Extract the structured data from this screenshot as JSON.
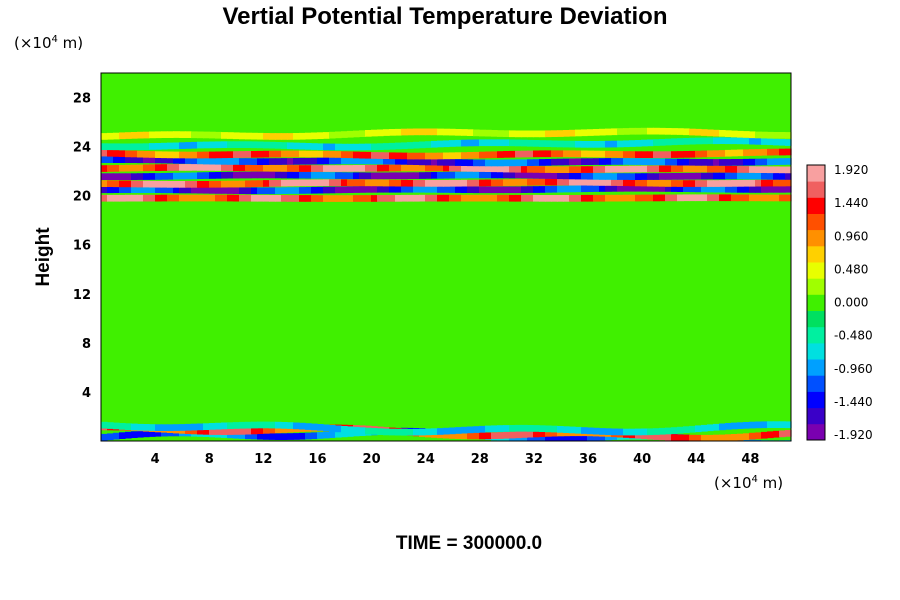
{
  "chart_data": {
    "type": "heatmap",
    "title": "Vertial Potential Temperature Deviation",
    "ylabel": "Height",
    "xlabel": "",
    "x_unit": "(×10",
    "y_unit": "(×10",
    "unit_exponent": "4",
    "unit_suffix": " m)",
    "x_ticks": [
      "4",
      "8",
      "12",
      "16",
      "20",
      "24",
      "28",
      "32",
      "36",
      "40",
      "44",
      "48"
    ],
    "y_ticks": [
      "4",
      "8",
      "12",
      "16",
      "20",
      "24",
      "28"
    ],
    "xlim": [
      0,
      51
    ],
    "ylim": [
      0,
      30
    ],
    "colorbar": {
      "range": [
        -1.92,
        1.92
      ],
      "tick_labels": [
        "1.920",
        "1.440",
        "0.960",
        "0.480",
        "0.000",
        "-0.480",
        "-0.960",
        "-1.440",
        "-1.920"
      ],
      "colors": [
        "#7a00b0",
        "#3a00c8",
        "#0000ff",
        "#0050ff",
        "#00a0ff",
        "#00e0e0",
        "#00f0a0",
        "#00e060",
        "#40f000",
        "#a0ff00",
        "#e8ff00",
        "#ffd000",
        "#ff9000",
        "#ff5000",
        "#ff0000",
        "#f06060",
        "#f8a0a0"
      ]
    },
    "bands": [
      {
        "y": 0.3,
        "value": -1.4,
        "amp": 1.5
      },
      {
        "y": 0.7,
        "value": 1.6,
        "amp": 1.4
      },
      {
        "y": 1.1,
        "value": -0.9,
        "amp": 1.3
      },
      {
        "y": 19.8,
        "value": 1.8,
        "amp": 0.1
      },
      {
        "y": 20.5,
        "value": -1.9,
        "amp": 0.3
      },
      {
        "y": 21.0,
        "value": 1.9,
        "amp": 0.3
      },
      {
        "y": 21.6,
        "value": -1.9,
        "amp": 0.3
      },
      {
        "y": 22.2,
        "value": 1.9,
        "amp": 0.3
      },
      {
        "y": 22.8,
        "value": -1.7,
        "amp": 0.4
      },
      {
        "y": 23.4,
        "value": 1.5,
        "amp": 0.5
      },
      {
        "y": 24.2,
        "value": -0.8,
        "amp": 0.8
      },
      {
        "y": 25.0,
        "value": 0.6,
        "amp": 0.8
      }
    ]
  },
  "footer": {
    "time_label": "TIME = 300000.0"
  }
}
